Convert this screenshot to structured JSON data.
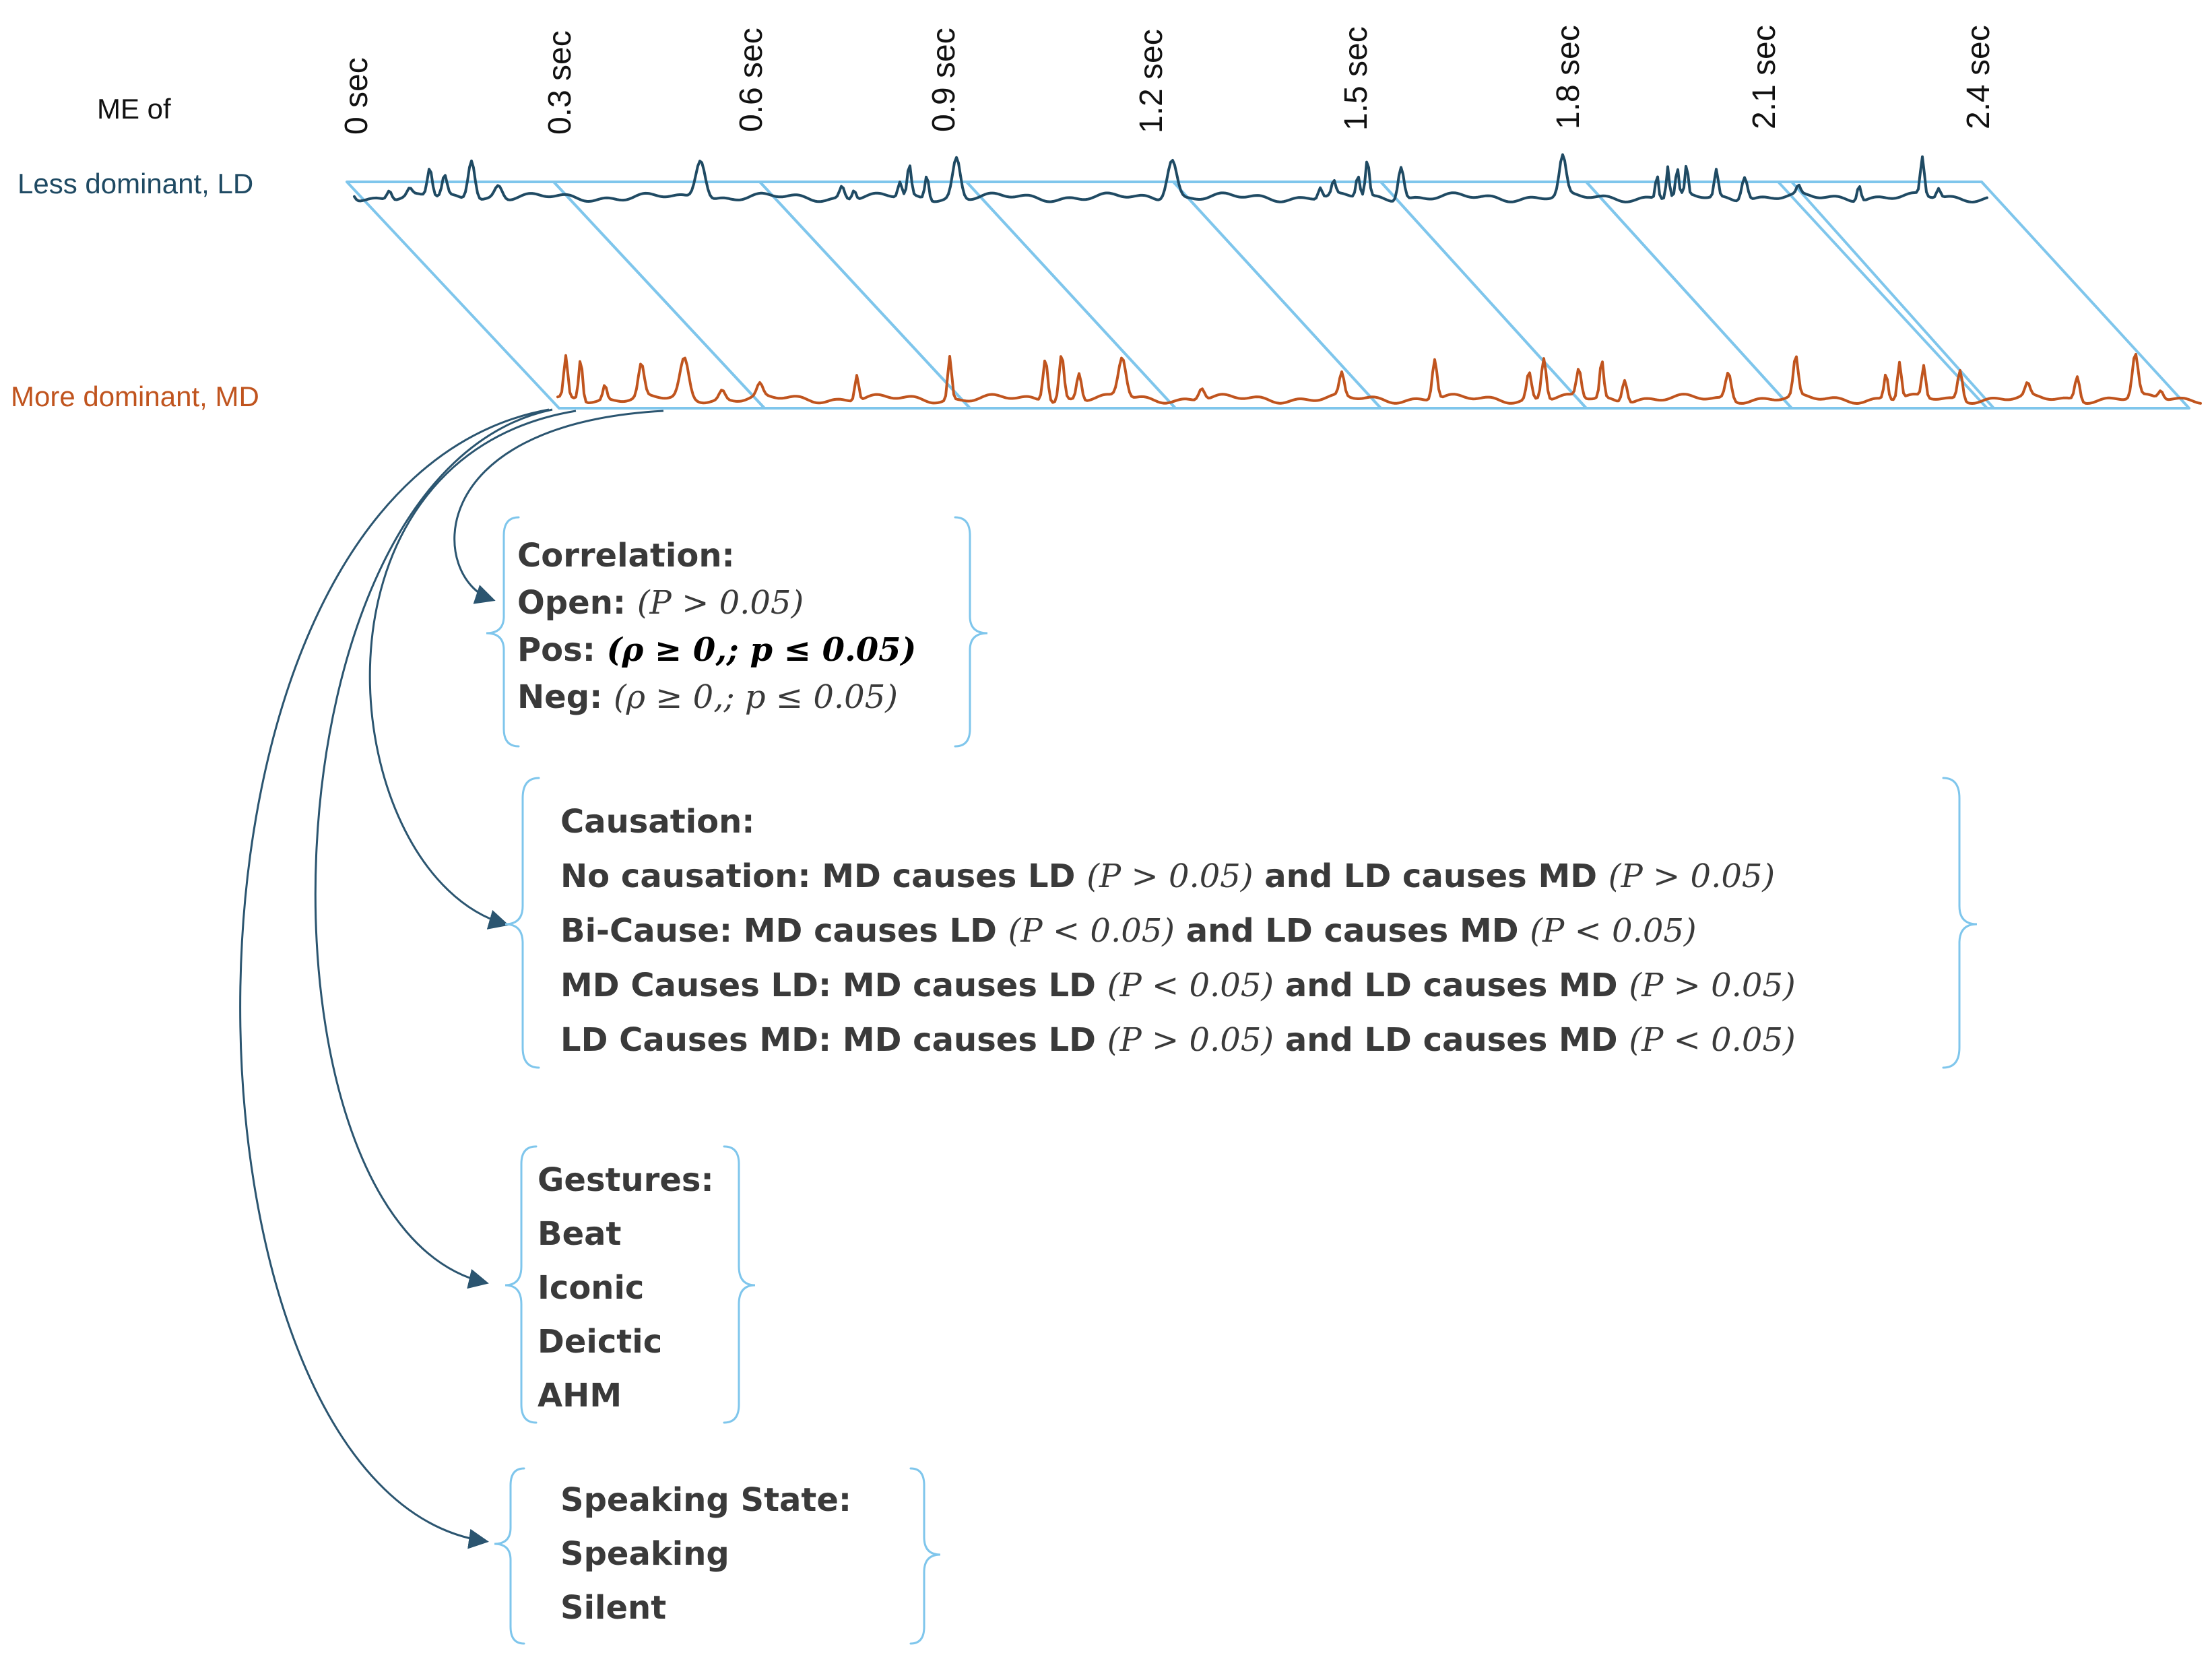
{
  "header": {
    "me_of_label": "ME of"
  },
  "series": {
    "ld_label": "Less dominant, LD",
    "md_label": "More dominant, MD",
    "ld_color": "#1f4a63",
    "md_color": "#c0541e",
    "window_color": "#7fc6ec",
    "arrow_color": "#2b5570"
  },
  "time_ticks": [
    "0 sec",
    "0.3 sec",
    "0.6 sec",
    "0.9 sec",
    "1.2 sec",
    "1.5 sec",
    "1.8 sec",
    "2.1 sec",
    "2.4 sec"
  ],
  "correlation": {
    "title": "Correlation:",
    "open_label": "Open:",
    "open_math": "(P > 0.05)",
    "pos_label": "Pos:",
    "pos_math": "(ρ ≥ 0,; p ≤ 0.05)",
    "neg_label": "Neg:",
    "neg_math": "(ρ ≥ 0,; p ≤ 0.05)"
  },
  "causation": {
    "title": "Causation:",
    "rows": [
      {
        "label": "No causation: MD causes LD",
        "math1": "(P > 0.05)",
        "mid": "and LD causes MD",
        "math2": "(P > 0.05)"
      },
      {
        "label": "Bi-Cause: MD causes LD",
        "math1": "(P < 0.05)",
        "mid": "and LD causes MD",
        "math2": "(P < 0.05)"
      },
      {
        "label": "MD Causes LD: MD causes LD",
        "math1": "(P < 0.05)",
        "mid": "and LD causes MD",
        "math2": "(P > 0.05)"
      },
      {
        "label": "LD Causes MD: MD causes LD",
        "math1": "(P > 0.05)",
        "mid": "and LD causes MD",
        "math2": "(P < 0.05)"
      }
    ]
  },
  "gestures": {
    "title": "Gestures:",
    "items": [
      "Beat",
      "Iconic",
      "Deictic",
      "AHM"
    ]
  },
  "speaking": {
    "title": "Speaking State:",
    "items": [
      "Speaking",
      "Silent"
    ]
  }
}
